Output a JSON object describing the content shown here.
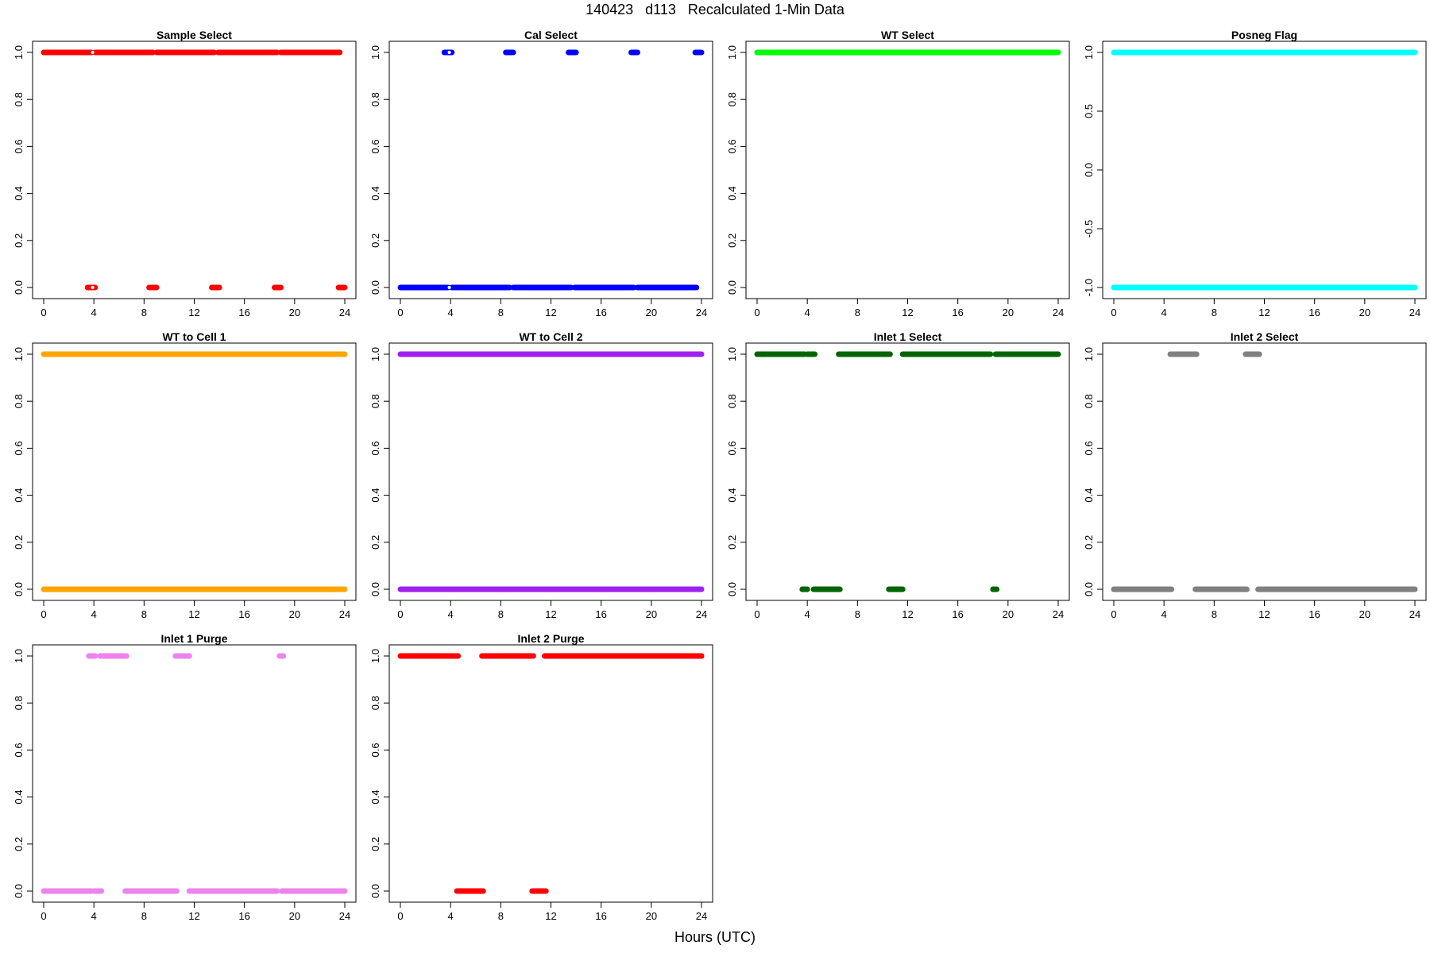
{
  "figure": {
    "title": "140423   d113   Recalculated 1-Min Data",
    "xlabel": "Hours (UTC)"
  },
  "chart_data": [
    {
      "type": "scatter",
      "title": "Sample Select",
      "color": "#ff0000",
      "xlim": [
        0,
        24
      ],
      "ylim": [
        0,
        1
      ],
      "xticks": [
        0,
        4,
        8,
        12,
        16,
        20,
        24
      ],
      "yticks": [
        0,
        0.2,
        0.4,
        0.6,
        0.8,
        1
      ],
      "ytick_labels": [
        "0.0",
        "0.2",
        "0.4",
        "0.6",
        "0.8",
        "1.0"
      ],
      "segments": [
        {
          "y": 1,
          "x": [
            [
              0,
              3.8
            ],
            [
              4.1,
              8.7
            ],
            [
              9.0,
              13.6
            ],
            [
              13.9,
              18.6
            ],
            [
              18.9,
              23.6
            ]
          ]
        },
        {
          "y": 0,
          "x": [
            [
              3.5,
              4.1
            ],
            [
              8.4,
              9.0
            ],
            [
              13.4,
              14.0
            ],
            [
              18.4,
              18.9
            ],
            [
              23.5,
              24.0
            ]
          ]
        }
      ],
      "markers": [
        {
          "x": 3.9,
          "y": 1
        },
        {
          "x": 3.9,
          "y": 0
        }
      ]
    },
    {
      "type": "scatter",
      "title": "Cal Select",
      "color": "#0000ff",
      "xlim": [
        0,
        24
      ],
      "ylim": [
        0,
        1
      ],
      "xticks": [
        0,
        4,
        8,
        12,
        16,
        20,
        24
      ],
      "yticks": [
        0,
        0.2,
        0.4,
        0.6,
        0.8,
        1
      ],
      "ytick_labels": [
        "0.0",
        "0.2",
        "0.4",
        "0.6",
        "0.8",
        "1.0"
      ],
      "segments": [
        {
          "y": 0,
          "x": [
            [
              0,
              3.8
            ],
            [
              4.1,
              8.7
            ],
            [
              9.0,
              13.6
            ],
            [
              13.9,
              18.6
            ],
            [
              18.9,
              23.6
            ]
          ]
        },
        {
          "y": 1,
          "x": [
            [
              3.5,
              4.1
            ],
            [
              8.4,
              9.0
            ],
            [
              13.4,
              14.0
            ],
            [
              18.4,
              18.9
            ],
            [
              23.5,
              24.0
            ]
          ]
        }
      ],
      "markers": [
        {
          "x": 3.9,
          "y": 1
        },
        {
          "x": 3.9,
          "y": 0
        }
      ]
    },
    {
      "type": "scatter",
      "title": "WT Select",
      "color": "#00ff00",
      "xlim": [
        0,
        24
      ],
      "ylim": [
        0,
        1
      ],
      "xticks": [
        0,
        4,
        8,
        12,
        16,
        20,
        24
      ],
      "yticks": [
        0,
        0.2,
        0.4,
        0.6,
        0.8,
        1
      ],
      "ytick_labels": [
        "0.0",
        "0.2",
        "0.4",
        "0.6",
        "0.8",
        "1.0"
      ],
      "segments": [
        {
          "y": 1,
          "x": [
            [
              0,
              24
            ]
          ]
        }
      ],
      "markers": []
    },
    {
      "type": "scatter",
      "title": "Posneg Flag",
      "color": "#00ffff",
      "xlim": [
        0,
        24
      ],
      "ylim": [
        -1,
        1
      ],
      "xticks": [
        0,
        4,
        8,
        12,
        16,
        20,
        24
      ],
      "yticks": [
        -1,
        -0.5,
        0,
        0.5,
        1
      ],
      "ytick_labels": [
        "-1.0",
        "-0.5",
        "0.0",
        "0.5",
        "1.0"
      ],
      "segments": [
        {
          "y": 1,
          "x": [
            [
              0,
              24
            ]
          ]
        },
        {
          "y": -1,
          "x": [
            [
              0,
              24
            ]
          ]
        }
      ],
      "markers": []
    },
    {
      "type": "scatter",
      "title": "WT to Cell 1",
      "color": "#ffa500",
      "xlim": [
        0,
        24
      ],
      "ylim": [
        0,
        1
      ],
      "xticks": [
        0,
        4,
        8,
        12,
        16,
        20,
        24
      ],
      "yticks": [
        0,
        0.2,
        0.4,
        0.6,
        0.8,
        1
      ],
      "ytick_labels": [
        "0.0",
        "0.2",
        "0.4",
        "0.6",
        "0.8",
        "1.0"
      ],
      "segments": [
        {
          "y": 1,
          "x": [
            [
              0,
              24
            ]
          ]
        },
        {
          "y": 0,
          "x": [
            [
              0,
              24
            ]
          ]
        }
      ],
      "markers": []
    },
    {
      "type": "scatter",
      "title": "WT to Cell 2",
      "color": "#a020f0",
      "xlim": [
        0,
        24
      ],
      "ylim": [
        0,
        1
      ],
      "xticks": [
        0,
        4,
        8,
        12,
        16,
        20,
        24
      ],
      "yticks": [
        0,
        0.2,
        0.4,
        0.6,
        0.8,
        1
      ],
      "ytick_labels": [
        "0.0",
        "0.2",
        "0.4",
        "0.6",
        "0.8",
        "1.0"
      ],
      "segments": [
        {
          "y": 1,
          "x": [
            [
              0,
              24
            ]
          ]
        },
        {
          "y": 0,
          "x": [
            [
              0,
              24
            ]
          ]
        }
      ],
      "markers": []
    },
    {
      "type": "scatter",
      "title": "Inlet 1 Select",
      "color": "#006400",
      "xlim": [
        0,
        24
      ],
      "ylim": [
        0,
        1
      ],
      "xticks": [
        0,
        4,
        8,
        12,
        16,
        20,
        24
      ],
      "yticks": [
        0,
        0.2,
        0.4,
        0.6,
        0.8,
        1
      ],
      "ytick_labels": [
        "0.0",
        "0.2",
        "0.4",
        "0.6",
        "0.8",
        "1.0"
      ],
      "segments": [
        {
          "y": 1,
          "x": [
            [
              0,
              3.8
            ],
            [
              4.0,
              4.6
            ],
            [
              6.5,
              10.6
            ],
            [
              11.6,
              18.6
            ],
            [
              19.0,
              24
            ]
          ]
        },
        {
          "y": 0,
          "x": [
            [
              3.6,
              4.0
            ],
            [
              4.5,
              6.6
            ],
            [
              10.5,
              11.6
            ],
            [
              18.8,
              19.1
            ]
          ]
        }
      ],
      "markers": []
    },
    {
      "type": "scatter",
      "title": "Inlet 2 Select",
      "color": "#808080",
      "xlim": [
        0,
        24
      ],
      "ylim": [
        0,
        1
      ],
      "xticks": [
        0,
        4,
        8,
        12,
        16,
        20,
        24
      ],
      "yticks": [
        0,
        0.2,
        0.4,
        0.6,
        0.8,
        1
      ],
      "ytick_labels": [
        "0.0",
        "0.2",
        "0.4",
        "0.6",
        "0.8",
        "1.0"
      ],
      "segments": [
        {
          "y": 1,
          "x": [
            [
              4.5,
              6.6
            ],
            [
              10.5,
              11.6
            ]
          ]
        },
        {
          "y": 0,
          "x": [
            [
              0,
              4.6
            ],
            [
              6.5,
              10.6
            ],
            [
              11.5,
              24
            ]
          ]
        }
      ],
      "markers": []
    },
    {
      "type": "scatter",
      "title": "Inlet 1 Purge",
      "color": "#ee82ee",
      "xlim": [
        0,
        24
      ],
      "ylim": [
        0,
        1
      ],
      "xticks": [
        0,
        4,
        8,
        12,
        16,
        20,
        24
      ],
      "yticks": [
        0,
        0.2,
        0.4,
        0.6,
        0.8,
        1
      ],
      "ytick_labels": [
        "0.0",
        "0.2",
        "0.4",
        "0.6",
        "0.8",
        "1.0"
      ],
      "segments": [
        {
          "y": 1,
          "x": [
            [
              3.6,
              4.1
            ],
            [
              4.5,
              6.6
            ],
            [
              10.5,
              11.6
            ],
            [
              18.8,
              19.1
            ]
          ]
        },
        {
          "y": 0,
          "x": [
            [
              0,
              3.8
            ],
            [
              4.0,
              4.6
            ],
            [
              6.5,
              10.6
            ],
            [
              11.6,
              18.6
            ],
            [
              19.0,
              24
            ]
          ]
        }
      ],
      "markers": []
    },
    {
      "type": "scatter",
      "title": "Inlet 2 Purge",
      "color": "#ff0000",
      "xlim": [
        0,
        24
      ],
      "ylim": [
        0,
        1
      ],
      "xticks": [
        0,
        4,
        8,
        12,
        16,
        20,
        24
      ],
      "yticks": [
        0,
        0.2,
        0.4,
        0.6,
        0.8,
        1
      ],
      "ytick_labels": [
        "0.0",
        "0.2",
        "0.4",
        "0.6",
        "0.8",
        "1.0"
      ],
      "segments": [
        {
          "y": 1,
          "x": [
            [
              0,
              4.6
            ],
            [
              6.5,
              10.6
            ],
            [
              11.5,
              24
            ]
          ]
        },
        {
          "y": 0,
          "x": [
            [
              4.5,
              6.6
            ],
            [
              10.5,
              11.6
            ]
          ]
        }
      ],
      "markers": []
    }
  ]
}
